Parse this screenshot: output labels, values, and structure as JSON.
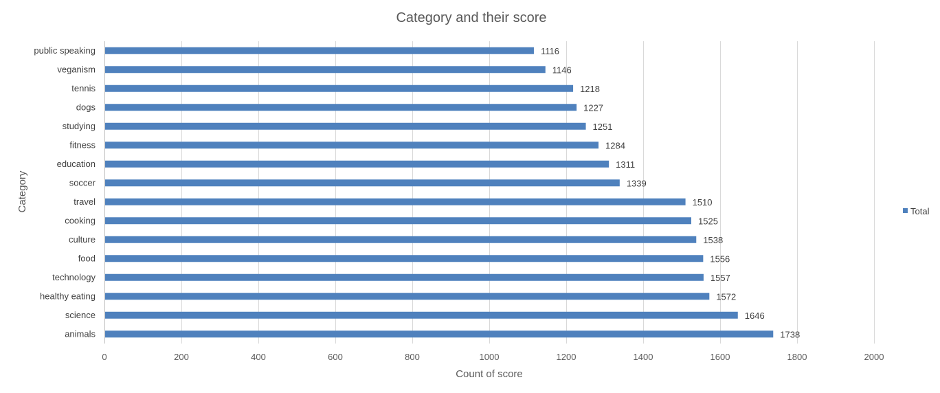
{
  "chart_data": {
    "type": "bar",
    "orientation": "horizontal",
    "title": "Category and their score",
    "xlabel": "Count of score",
    "ylabel": "Category",
    "xlim": [
      0,
      2000
    ],
    "xticks": [
      0,
      200,
      400,
      600,
      800,
      1000,
      1200,
      1400,
      1600,
      1800,
      2000
    ],
    "grid": true,
    "legend": "right",
    "categories": [
      "public speaking",
      "veganism",
      "tennis",
      "dogs",
      "studying",
      "fitness",
      "education",
      "soccer",
      "travel",
      "cooking",
      "culture",
      "food",
      "technology",
      "healthy eating",
      "science",
      "animals"
    ],
    "series": [
      {
        "name": "Total",
        "color": "#4f81bd",
        "values": [
          1116,
          1146,
          1218,
          1227,
          1251,
          1284,
          1311,
          1339,
          1510,
          1525,
          1538,
          1556,
          1557,
          1572,
          1646,
          1738
        ]
      }
    ]
  }
}
